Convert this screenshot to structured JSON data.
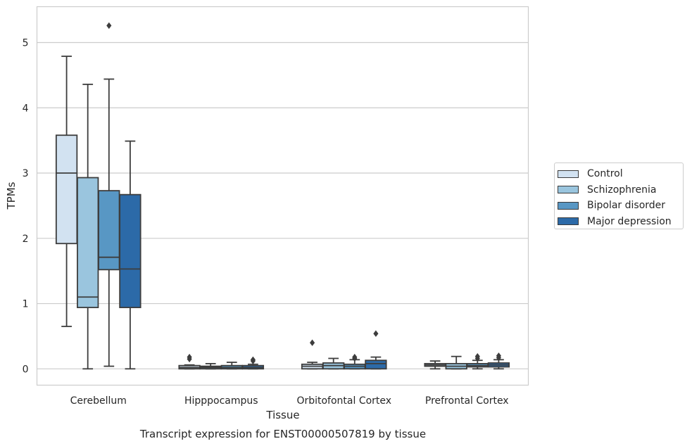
{
  "chart_data": {
    "type": "boxplot",
    "title": "Transcript expression for ENST00000507819 by tissue",
    "xlabel": "Tissue",
    "ylabel": "TPMs",
    "ylim": [
      -0.25,
      5.55
    ],
    "yticks": [
      0,
      1,
      2,
      3,
      4,
      5
    ],
    "grid": "horizontal",
    "legend_placement": "right",
    "categories": [
      "Cerebellum",
      "Hipppocampus",
      "Orbitofontal Cortex",
      "Prefrontal Cortex"
    ],
    "series": [
      {
        "name": "Control",
        "color": "#d2e2f1",
        "boxes": [
          {
            "whislo": 0.65,
            "q1": 1.92,
            "med": 3.0,
            "q3": 3.58,
            "whishi": 4.79,
            "fliers": []
          },
          {
            "whislo": 0.0,
            "q1": 0.0,
            "med": 0.02,
            "q3": 0.05,
            "whishi": 0.06,
            "fliers": [
              0.15,
              0.18
            ]
          },
          {
            "whislo": 0.0,
            "q1": 0.0,
            "med": 0.04,
            "q3": 0.07,
            "whishi": 0.1,
            "fliers": [
              0.4
            ]
          },
          {
            "whislo": 0.0,
            "q1": 0.04,
            "med": 0.06,
            "q3": 0.08,
            "whishi": 0.12,
            "fliers": []
          }
        ]
      },
      {
        "name": "Schizophrenia",
        "color": "#9ac5de",
        "boxes": [
          {
            "whislo": 0.0,
            "q1": 0.94,
            "med": 1.1,
            "q3": 2.93,
            "whishi": 4.36,
            "fliers": []
          },
          {
            "whislo": 0.0,
            "q1": 0.0,
            "med": 0.02,
            "q3": 0.04,
            "whishi": 0.08,
            "fliers": []
          },
          {
            "whislo": 0.0,
            "q1": 0.0,
            "med": 0.05,
            "q3": 0.09,
            "whishi": 0.16,
            "fliers": []
          },
          {
            "whislo": 0.0,
            "q1": 0.0,
            "med": 0.04,
            "q3": 0.08,
            "whishi": 0.19,
            "fliers": []
          }
        ]
      },
      {
        "name": "Bipolar disorder",
        "color": "#5897c4",
        "boxes": [
          {
            "whislo": 0.04,
            "q1": 1.52,
            "med": 1.71,
            "q3": 2.73,
            "whishi": 4.44,
            "fliers": [
              5.26
            ]
          },
          {
            "whislo": 0.0,
            "q1": 0.0,
            "med": 0.02,
            "q3": 0.05,
            "whishi": 0.1,
            "fliers": []
          },
          {
            "whislo": 0.0,
            "q1": 0.0,
            "med": 0.04,
            "q3": 0.07,
            "whishi": 0.14,
            "fliers": [
              0.16,
              0.18
            ]
          },
          {
            "whislo": 0.0,
            "q1": 0.03,
            "med": 0.05,
            "q3": 0.08,
            "whishi": 0.13,
            "fliers": [
              0.16,
              0.19
            ]
          }
        ]
      },
      {
        "name": "Major depression",
        "color": "#2c6aa8",
        "boxes": [
          {
            "whislo": 0.0,
            "q1": 0.94,
            "med": 1.53,
            "q3": 2.67,
            "whishi": 3.49,
            "fliers": []
          },
          {
            "whislo": 0.0,
            "q1": 0.0,
            "med": 0.02,
            "q3": 0.05,
            "whishi": 0.07,
            "fliers": [
              0.12,
              0.14
            ]
          },
          {
            "whislo": 0.0,
            "q1": 0.0,
            "med": 0.08,
            "q3": 0.13,
            "whishi": 0.18,
            "fliers": [
              0.54
            ]
          },
          {
            "whislo": 0.0,
            "q1": 0.03,
            "med": 0.06,
            "q3": 0.09,
            "whishi": 0.14,
            "fliers": [
              0.17,
              0.2
            ]
          }
        ]
      }
    ]
  }
}
